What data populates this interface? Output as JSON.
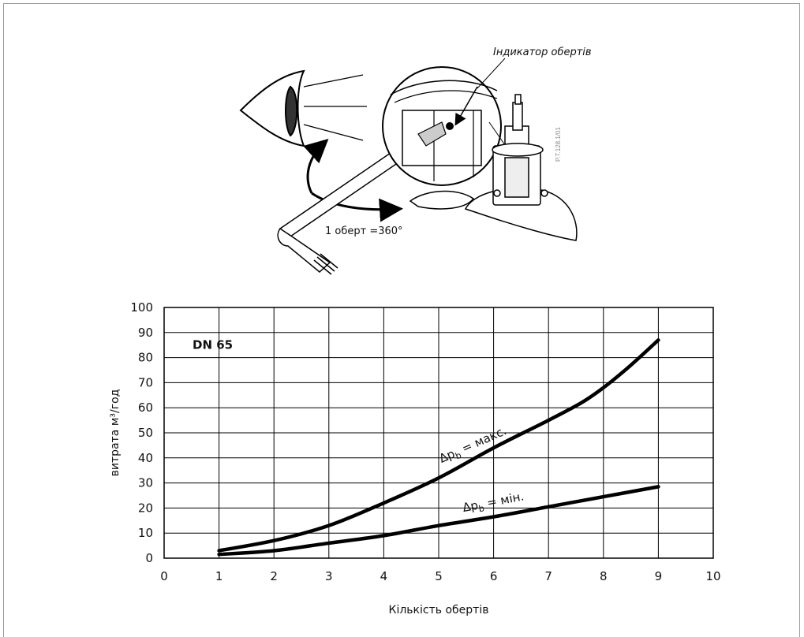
{
  "illustration": {
    "indicator_label": "Індикатор обертів",
    "rotation_label": "1 оберт =360°",
    "figure_code": "P.T.128.1/01"
  },
  "chart_data": {
    "type": "line",
    "title": "DN 65",
    "xlabel": "Кількість обертів",
    "ylabel": "витрата м³/год",
    "xlim": [
      0,
      10
    ],
    "ylim": [
      0,
      100
    ],
    "x_ticks": [
      "0",
      "1",
      "2",
      "3",
      "4",
      "5",
      "6",
      "7",
      "8",
      "9",
      "10"
    ],
    "y_ticks": [
      "0",
      "10",
      "20",
      "30",
      "40",
      "50",
      "60",
      "70",
      "80",
      "90",
      "100"
    ],
    "grid": true,
    "series": [
      {
        "name": "Δp_b = макс.",
        "label_main": "Δp",
        "label_sub": "b",
        "label_rest": " = макс.",
        "x": [
          1,
          2,
          3,
          4,
          5,
          6,
          7,
          7.6,
          8,
          8.5,
          9
        ],
        "y": [
          3,
          7,
          13,
          22,
          32,
          44,
          55,
          62,
          68,
          77,
          87
        ]
      },
      {
        "name": "Δp_b = мін.",
        "label_main": "Δp",
        "label_sub": "b",
        "label_rest": " = мін.",
        "x": [
          1,
          2,
          3,
          4,
          5,
          6,
          7,
          8,
          9
        ],
        "y": [
          1.5,
          3,
          6,
          9,
          13,
          16.5,
          20.5,
          24.5,
          28.5
        ]
      }
    ]
  }
}
